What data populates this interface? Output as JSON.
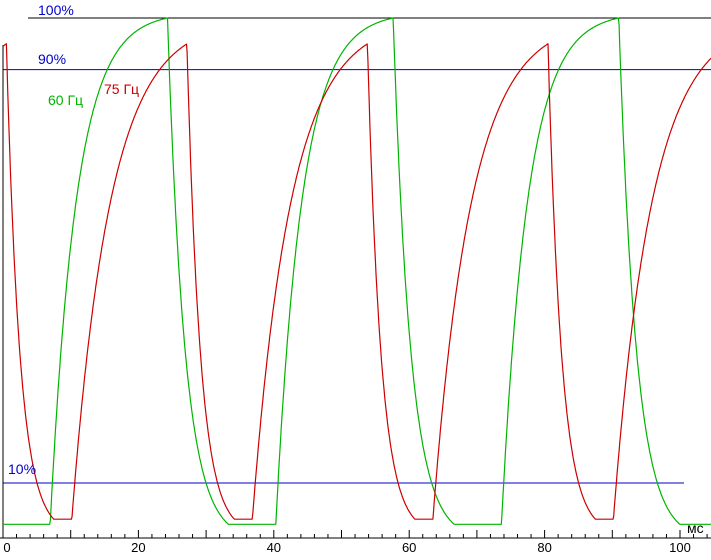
{
  "app": {
    "background": "#ffffff"
  },
  "chart_data": {
    "type": "line",
    "title": "",
    "xlabel": "мс",
    "ylabel": "",
    "x_range_ms": [
      0,
      100
    ],
    "y_range_percent": [
      0,
      100
    ],
    "grid": "off",
    "legend": "inline-labels",
    "axis_color": "#000000",
    "x_tick_values": [
      0,
      20,
      40,
      60,
      80,
      100
    ],
    "x_tick_labels": [
      "0",
      "20",
      "40",
      "60",
      "80",
      "100"
    ],
    "minor_tick_step_ms": 2,
    "major_tick_step_ms": 10,
    "reference_lines": [
      {
        "label": "100%",
        "value": 100,
        "color": "#000000",
        "label_color": "#0000cc"
      },
      {
        "label": "90%",
        "value": 90,
        "color": "#0000cc",
        "label_color": "#0000cc"
      },
      {
        "label": "10%",
        "value": 10,
        "color": "#0000cc",
        "label_color": "#0000cc"
      }
    ],
    "series": [
      {
        "name": "60 Гц",
        "frequency_hz": 60,
        "color": "#00b400",
        "period_ms": 33.333,
        "first_peak_ms": 24.3,
        "peak_percent": 100,
        "min_percent": 2,
        "fall_ms": 9,
        "dwell_ms": 7,
        "rise_ms": 17.333,
        "fall_sharpness": 3.5,
        "rise_sharpness": 4.5,
        "peak_times_ms": [
          24.3,
          57.6,
          91.0
        ]
      },
      {
        "name": "75 Гц",
        "frequency_hz": 75,
        "color": "#cc0000",
        "period_ms": 26.667,
        "first_peak_ms": 0.5,
        "peak_percent": 95,
        "min_percent": 3,
        "fall_ms": 7,
        "dwell_ms": 2.667,
        "rise_ms": 17,
        "fall_sharpness": 3.5,
        "rise_sharpness": 3.0,
        "peak_times_ms": [
          0.5,
          27.2,
          53.8,
          80.5
        ]
      }
    ]
  }
}
